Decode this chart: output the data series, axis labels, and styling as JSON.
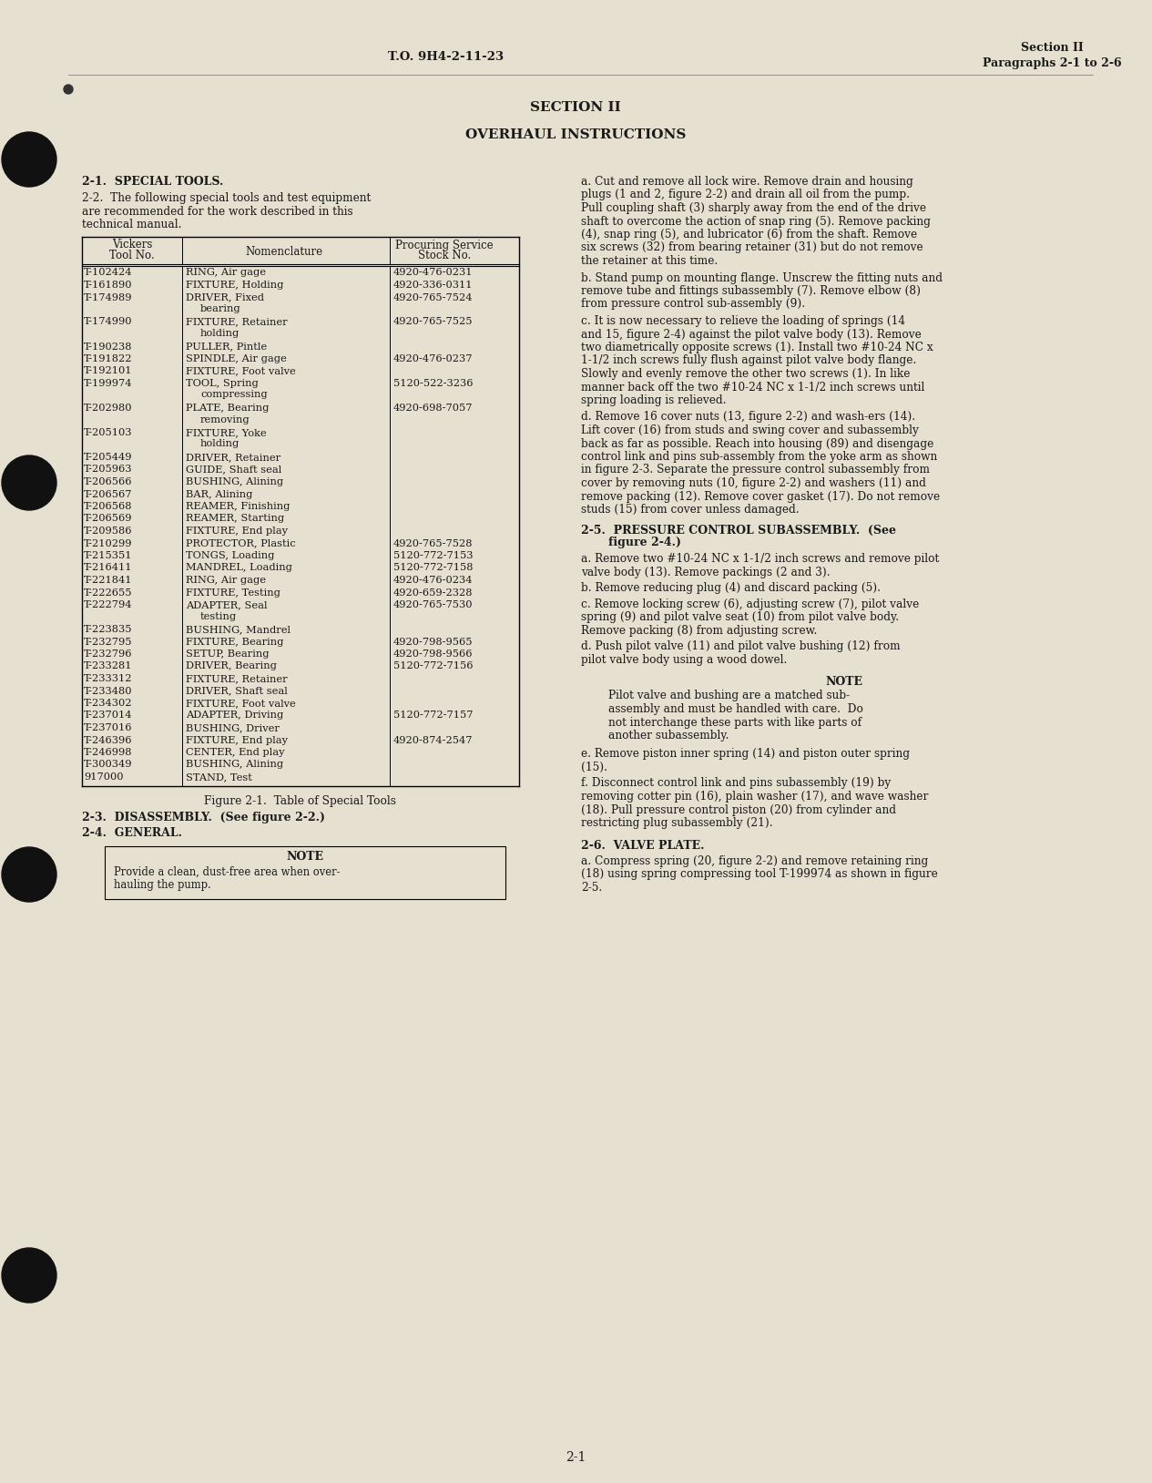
{
  "bg_color": "#e5e0d0",
  "header_left": "T.O. 9H4-2-11-23",
  "header_right_line1": "Section II",
  "header_right_line2": "Paragraphs 2-1 to 2-6",
  "section_title": "SECTION II",
  "section_subtitle": "OVERHAUL INSTRUCTIONS",
  "para_2_1_title": "2-1.  SPECIAL TOOLS.",
  "para_2_2_text": "2-2.  The following special tools and test equipment are recommended for the work described in this technical manual.",
  "table_col1_header_l1": "Vickers",
  "table_col1_header_l2": "Tool No.",
  "table_col2_header": "Nomenclature",
  "table_col3_header_l1": "Procuring Service",
  "table_col3_header_l2": "Stock No.",
  "table_rows": [
    [
      "T-102424",
      "RING, Air gage",
      "4920-476-0231",
      false
    ],
    [
      "T-161890",
      "FIXTURE, Holding",
      "4920-336-0311",
      false
    ],
    [
      "T-174989",
      "DRIVER, Fixed",
      "4920-765-7524",
      true
    ],
    [
      "T-174990",
      "FIXTURE, Retainer",
      "4920-765-7525",
      true
    ],
    [
      "T-190238",
      "PULLER, Pintle",
      "",
      false
    ],
    [
      "T-191822",
      "SPINDLE, Air gage",
      "4920-476-0237",
      false
    ],
    [
      "T-192101",
      "FIXTURE, Foot valve",
      "",
      false
    ],
    [
      "T-199974",
      "TOOL, Spring",
      "5120-522-3236",
      true
    ],
    [
      "T-202980",
      "PLATE, Bearing",
      "4920-698-7057",
      true
    ],
    [
      "T-205103",
      "FIXTURE, Yoke",
      "",
      true
    ],
    [
      "T-205449",
      "DRIVER, Retainer",
      "",
      false
    ],
    [
      "T-205963",
      "GUIDE, Shaft seal",
      "",
      false
    ],
    [
      "T-206566",
      "BUSHING, Alining",
      "",
      false
    ],
    [
      "T-206567",
      "BAR, Alining",
      "",
      false
    ],
    [
      "T-206568",
      "REAMER, Finishing",
      "",
      false
    ],
    [
      "T-206569",
      "REAMER, Starting",
      "",
      false
    ],
    [
      "T-209586",
      "FIXTURE, End play",
      "",
      false
    ],
    [
      "T-210299",
      "PROTECTOR, Plastic",
      "4920-765-7528",
      false
    ],
    [
      "T-215351",
      "TONGS, Loading",
      "5120-772-7153",
      false
    ],
    [
      "T-216411",
      "MANDREL, Loading",
      "5120-772-7158",
      false
    ],
    [
      "T-221841",
      "RING, Air gage",
      "4920-476-0234",
      false
    ],
    [
      "T-222655",
      "FIXTURE, Testing",
      "4920-659-2328",
      false
    ],
    [
      "T-222794",
      "ADAPTER, Seal",
      "4920-765-7530",
      true
    ],
    [
      "T-223835",
      "BUSHING, Mandrel",
      "",
      false
    ],
    [
      "T-232795",
      "FIXTURE, Bearing",
      "4920-798-9565",
      false
    ],
    [
      "T-232796",
      "SETUP, Bearing",
      "4920-798-9566",
      false
    ],
    [
      "T-233281",
      "DRIVER, Bearing",
      "5120-772-7156",
      false
    ],
    [
      "T-233312",
      "FIXTURE, Retainer",
      "",
      false
    ],
    [
      "T-233480",
      "DRIVER, Shaft seal",
      "",
      false
    ],
    [
      "T-234302",
      "FIXTURE, Foot valve",
      "",
      false
    ],
    [
      "T-237014",
      "ADAPTER, Driving",
      "5120-772-7157",
      false
    ],
    [
      "T-237016",
      "BUSHING, Driver",
      "",
      false
    ],
    [
      "T-246396",
      "FIXTURE, End play",
      "4920-874-2547",
      false
    ],
    [
      "T-246998",
      "CENTER, End play",
      "",
      false
    ],
    [
      "T-300349",
      "BUSHING, Alining",
      "",
      false
    ],
    [
      "917000",
      "STAND, Test",
      "",
      false
    ]
  ],
  "table_row_continuations": {
    "2": "bearing",
    "3": "holding",
    "7": "compressing",
    "8": "removing",
    "9": "holding",
    "22": "testing"
  },
  "table_caption": "Figure 2-1.  Table of Special Tools",
  "para_2_3": "2-3.  DISASSEMBLY.  (See figure 2-2.)",
  "para_2_4": "2-4.  GENERAL.",
  "note_1_line1": "Provide a clean, dust-free area when over-",
  "note_1_line2": "hauling the pump.",
  "right_paras": [
    "a.  Cut and remove all lock wire.  Remove drain and housing plugs (1 and 2, figure 2-2) and drain all oil from the pump.  Pull coupling shaft (3) sharply away from the end of the drive shaft to overcome the action of snap ring (5).  Remove packing (4), snap ring (5), and lubricator (6) from the shaft.  Remove six screws (32) from bearing retainer (31) but do not remove the retainer at this time.",
    "b.  Stand pump on mounting flange.  Unscrew the fitting nuts and remove tube and fittings subassembly (7).  Remove elbow (8) from pressure control sub-assembly (9).",
    "c.  It is now necessary to relieve the loading of springs (14 and 15, figure 2-4) against the pilot valve body (13).  Remove two diametrically opposite screws (1).  Install two #10-24 NC x 1-1/2 inch screws fully flush against pilot valve body flange.  Slowly and evenly remove the other two screws (1).  In like manner back off the two #10-24 NC x 1-1/2 inch screws until spring loading is relieved.",
    "d.  Remove 16 cover nuts (13, figure 2-2) and wash-ers (14).  Lift cover (16) from studs and swing cover and subassembly back as far as possible.  Reach into housing (89) and disengage control link and pins sub-assembly from the yoke arm as shown in figure 2-3.  Separate the pressure control subassembly from cover by removing nuts (10, figure 2-2) and washers (11) and remove packing (12).  Remove cover gasket (17).  Do not remove studs (15) from cover unless damaged."
  ],
  "para_2_5_l1": "2-5.  PRESSURE CONTROL SUBASSEMBLY.  (See",
  "para_2_5_l2": "figure 2-4.)",
  "right_paras_2_5": [
    "a.  Remove two #10-24 NC x 1-1/2 inch screws and remove pilot valve body (13).  Remove packings (2 and 3).",
    "b.  Remove reducing plug (4) and discard packing (5).",
    "c.  Remove locking screw (6), adjusting screw (7), pilot valve spring (9) and pilot valve seat (10) from pilot valve body.  Remove packing (8) from adjusting screw.",
    "d.  Push pilot valve (11) and pilot valve bushing (12) from pilot valve body using a wood dowel."
  ],
  "note_2_line1": "Pilot valve and bushing are a matched sub-",
  "note_2_line2": "assembly and must be handled with care.  Do",
  "note_2_line3": "not interchange these parts with like parts of",
  "note_2_line4": "another subassembly.",
  "right_paras_2_5_ef": [
    "e.  Remove piston inner spring (14) and piston outer spring (15).",
    "f.  Disconnect control link and pins subassembly (19) by removing cotter pin (16), plain washer (17), and wave washer (18).  Pull pressure control piston (20) from cylinder and restricting plug subassembly (21)."
  ],
  "para_2_6": "2-6.  VALVE PLATE.",
  "para_2_6_a": "a.  Compress spring (20, figure 2-2) and remove retaining ring (18) using spring compressing tool T-199974 as shown in figure 2-5.",
  "page_number": "2-1"
}
